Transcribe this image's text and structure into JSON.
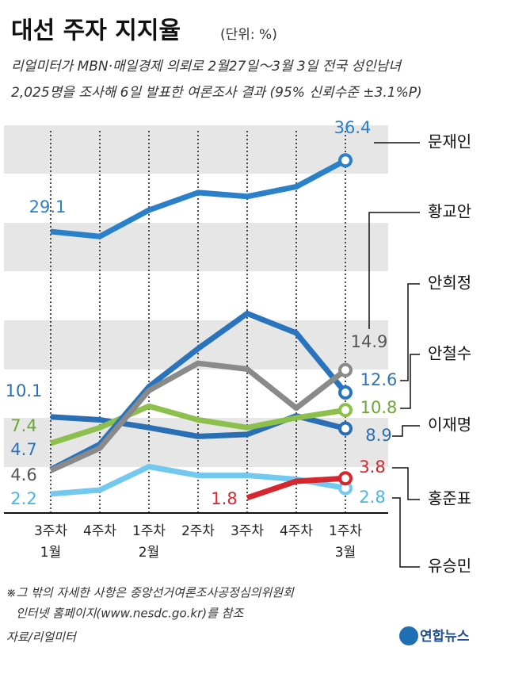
{
  "chart_data": {
    "type": "line",
    "title": "대선 주자 지지율",
    "unit": "(단위: %)",
    "subtitle": [
      "리얼미터가 MBN·매일경제 의뢰로 2월27일～3월 3일 전국 성인남녀",
      "2,025명을 조사해 6일 발표한 여론조사 결과 (95% 신뢰수준 ±3.1%P)"
    ],
    "categories": [
      "3주차",
      "4주차",
      "1주차",
      "2주차",
      "3주차",
      "4주차",
      "1주차"
    ],
    "months": [
      "1월",
      null,
      "2월",
      null,
      null,
      null,
      "3월"
    ],
    "ylim": [
      0,
      40
    ],
    "series": [
      {
        "name": "문재인",
        "color": "#2a80c9",
        "values": [
          29.1,
          28.6,
          31.3,
          33.1,
          32.7,
          33.7,
          36.4
        ]
      },
      {
        "name": "황교안",
        "color": "#8a8a8a",
        "values": [
          4.6,
          6.9,
          12.8,
          15.6,
          15.0,
          11.0,
          14.9
        ]
      },
      {
        "name": "안희정",
        "color": "#2a74bd",
        "values": [
          4.7,
          7.3,
          13.2,
          17.1,
          20.7,
          18.7,
          12.6
        ]
      },
      {
        "name": "안철수",
        "color": "#8dbf4c",
        "values": [
          7.4,
          9.0,
          11.2,
          9.8,
          9.0,
          10.0,
          10.8
        ]
      },
      {
        "name": "이재명",
        "color": "#2a6fb5",
        "values": [
          10.1,
          9.8,
          9.0,
          8.1,
          8.3,
          10.2,
          8.9
        ]
      },
      {
        "name": "홍준표",
        "color": "#d8262e",
        "values": [
          null,
          null,
          null,
          null,
          1.8,
          3.5,
          3.8
        ]
      },
      {
        "name": "유승민",
        "color": "#72c8ee",
        "values": [
          2.2,
          2.6,
          5.0,
          4.1,
          4.1,
          3.7,
          2.8
        ]
      }
    ],
    "notes": [
      "※그 밖의 자세한 사항은 중앙선거여론조사공정심의위원회",
      "인터넷 홈페이지(www.nesdc.go.kr)를 참조"
    ],
    "source": "자료/리얼미터",
    "credit": "연합뉴스"
  }
}
